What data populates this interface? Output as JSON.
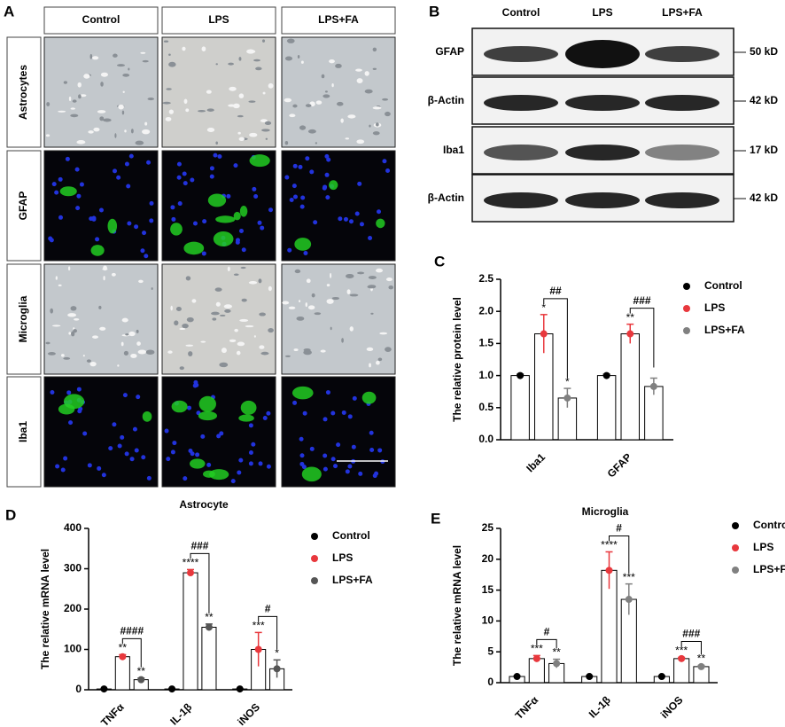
{
  "panels": {
    "A": {
      "label": "A",
      "columns": [
        "Control",
        "LPS",
        "LPS+FA"
      ],
      "rows": [
        "Astrocytes",
        "GFAP",
        "Microglia",
        "Iba1"
      ]
    },
    "B": {
      "label": "B",
      "columns": [
        "Control",
        "LPS",
        "LPS+FA"
      ],
      "rows": [
        {
          "name": "GFAP",
          "size": "50 kD"
        },
        {
          "name": "β-Actin",
          "size": "42 kD"
        },
        {
          "name": "Iba1",
          "size": "17 kD"
        },
        {
          "name": "β-Actin",
          "size": "42 kD"
        }
      ]
    }
  },
  "chart_data": [
    {
      "type": "bar",
      "panel": "C",
      "ylabel": "The relative protein  level",
      "categories": [
        "Iba1",
        "GFAP"
      ],
      "series": [
        {
          "name": "Control",
          "color": "#000000",
          "values": [
            1.0,
            1.0
          ],
          "errors": [
            0.02,
            0.02
          ],
          "annotations": [
            null,
            null
          ]
        },
        {
          "name": "LPS",
          "color": "#e8383d",
          "values": [
            1.65,
            1.65
          ],
          "errors": [
            0.3,
            0.15
          ],
          "annotations": [
            "*",
            "**"
          ]
        },
        {
          "name": "LPS+FA",
          "color": "#808080",
          "values": [
            0.65,
            0.83
          ],
          "errors": [
            0.15,
            0.13
          ],
          "annotations": [
            "*",
            null
          ]
        }
      ],
      "comparisons": [
        "##",
        "###"
      ],
      "ylim": [
        0,
        2.5
      ],
      "yticks": [
        {
          "value": 0,
          "label": "0.0"
        },
        0.5,
        {
          "value": 1,
          "label": "1.0"
        },
        1.5,
        {
          "value": 2,
          "label": "2.0"
        },
        2.5
      ]
    },
    {
      "type": "bar",
      "panel": "D",
      "title": "Astrocyte",
      "ylabel": "The relative mRNA  level",
      "categories": [
        "TNFα",
        "IL-1β",
        "iNOS"
      ],
      "series": [
        {
          "name": "Control",
          "color": "#000000",
          "values": [
            2,
            2,
            2
          ],
          "errors": [
            0.5,
            0.5,
            0.5
          ],
          "annotations": [
            null,
            null,
            null
          ]
        },
        {
          "name": "LPS",
          "color": "#e8383d",
          "values": [
            82,
            290,
            100
          ],
          "errors": [
            5,
            8,
            42
          ],
          "annotations": [
            "**",
            "****",
            "***"
          ]
        },
        {
          "name": "LPS+FA",
          "color": "#555555",
          "values": [
            25,
            155,
            52
          ],
          "errors": [
            4,
            8,
            22
          ],
          "annotations": [
            "**",
            "**",
            "*"
          ]
        }
      ],
      "comparisons": [
        "####",
        "###",
        "#"
      ],
      "ylim": [
        0,
        400
      ],
      "yticks": [
        0,
        100,
        200,
        300,
        400
      ]
    },
    {
      "type": "bar",
      "panel": "E",
      "title": "Microglia",
      "ylabel": "The relative mRNA  level",
      "categories": [
        "TNFα",
        "IL-1β",
        "iNOS"
      ],
      "series": [
        {
          "name": "Control",
          "color": "#000000",
          "values": [
            1,
            1,
            1
          ],
          "errors": [
            0.1,
            0.1,
            0.1
          ],
          "annotations": [
            null,
            null,
            null
          ]
        },
        {
          "name": "LPS",
          "color": "#e8383d",
          "values": [
            3.9,
            18.2,
            3.9
          ],
          "errors": [
            0.5,
            3,
            0.2
          ],
          "annotations": [
            "***",
            "****",
            "***"
          ]
        },
        {
          "name": "LPS+FA",
          "color": "#808080",
          "values": [
            3.1,
            13.5,
            2.6
          ],
          "errors": [
            0.7,
            2.5,
            0.2
          ],
          "annotations": [
            "**",
            "***",
            "**"
          ]
        }
      ],
      "comparisons": [
        "#",
        "#",
        "###"
      ],
      "ylim": [
        0,
        25
      ],
      "yticks": [
        0,
        5,
        10,
        15,
        20,
        25
      ]
    }
  ]
}
